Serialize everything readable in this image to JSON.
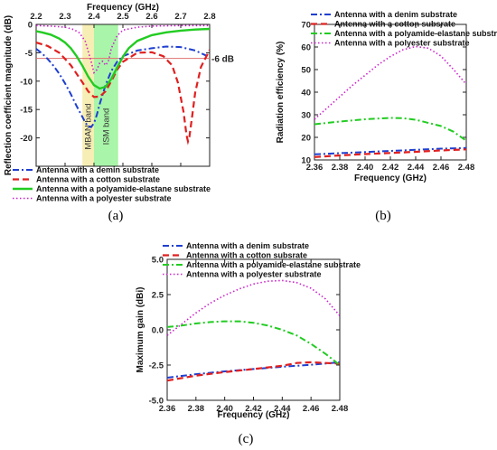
{
  "chart_data": [
    {
      "id": "a",
      "type": "line",
      "panel_label": "(a)",
      "xlabel": "Frequency (GHz)",
      "ylabel": "Reflection coefficient magnitude (dB)",
      "xlim": [
        2.2,
        2.8
      ],
      "ylim": [
        -25,
        0
      ],
      "xticks": [
        2.2,
        2.3,
        2.4,
        2.5,
        2.6,
        2.7,
        2.8
      ],
      "yticks": [
        0,
        -5,
        -10,
        -15,
        -20
      ],
      "x_axis_position": "top",
      "legend_position": "bottom",
      "threshold": {
        "y": -6,
        "label": "-6 dB",
        "color": "#e07070"
      },
      "bands": [
        {
          "name": "MBAN band",
          "x0": 2.36,
          "x1": 2.4,
          "color": "#f6eeb4"
        },
        {
          "name": "ISM band",
          "x0": 2.4,
          "x1": 2.4835,
          "color": "#a9f5a9"
        }
      ],
      "series": [
        {
          "name": "Antenna with a demin substrate",
          "color": "#1f3fd0",
          "dash": "dashdot",
          "points": [
            [
              2.2,
              -4.3
            ],
            [
              2.22,
              -5.1
            ],
            [
              2.24,
              -6.1
            ],
            [
              2.26,
              -7.3
            ],
            [
              2.28,
              -8.7
            ],
            [
              2.3,
              -10.4
            ],
            [
              2.32,
              -12.3
            ],
            [
              2.34,
              -14.4
            ],
            [
              2.36,
              -16.3
            ],
            [
              2.37,
              -17.3
            ],
            [
              2.38,
              -18
            ],
            [
              2.39,
              -18.1
            ],
            [
              2.4,
              -17.4
            ],
            [
              2.41,
              -15.9
            ],
            [
              2.42,
              -14
            ],
            [
              2.44,
              -10.7
            ],
            [
              2.46,
              -8.2
            ],
            [
              2.48,
              -6.6
            ],
            [
              2.5,
              -5.6
            ],
            [
              2.55,
              -4.6
            ],
            [
              2.6,
              -4.2
            ],
            [
              2.65,
              -3.9
            ],
            [
              2.7,
              -4
            ],
            [
              2.75,
              -4.6
            ],
            [
              2.78,
              -5.3
            ],
            [
              2.8,
              -5.8
            ]
          ]
        },
        {
          "name": "Antenna with a cotton substrate",
          "color": "#e02020",
          "dash": "dash",
          "points": [
            [
              2.2,
              -3.2
            ],
            [
              2.24,
              -3.8
            ],
            [
              2.28,
              -5
            ],
            [
              2.32,
              -7.2
            ],
            [
              2.36,
              -10.2
            ],
            [
              2.38,
              -11.8
            ],
            [
              2.4,
              -12.8
            ],
            [
              2.42,
              -12.7
            ],
            [
              2.44,
              -11.8
            ],
            [
              2.46,
              -10
            ],
            [
              2.48,
              -8
            ],
            [
              2.5,
              -6.6
            ],
            [
              2.55,
              -5
            ],
            [
              2.6,
              -4.9
            ],
            [
              2.64,
              -5.6
            ],
            [
              2.67,
              -7.2
            ],
            [
              2.69,
              -10.2
            ],
            [
              2.71,
              -15.5
            ],
            [
              2.72,
              -19.5
            ],
            [
              2.725,
              -20.6
            ],
            [
              2.73,
              -19.8
            ],
            [
              2.74,
              -16
            ],
            [
              2.75,
              -12
            ],
            [
              2.77,
              -7.5
            ],
            [
              2.8,
              -4.5
            ]
          ]
        },
        {
          "name": "Antenna with a polyamide-elastane substrate",
          "color": "#22cc22",
          "dash": "solid",
          "points": [
            [
              2.2,
              -1.2
            ],
            [
              2.22,
              -1.4
            ],
            [
              2.25,
              -1.8
            ],
            [
              2.28,
              -2.5
            ],
            [
              2.3,
              -3.2
            ],
            [
              2.32,
              -4.2
            ],
            [
              2.34,
              -5.6
            ],
            [
              2.36,
              -7.3
            ],
            [
              2.38,
              -9.2
            ],
            [
              2.4,
              -10.7
            ],
            [
              2.42,
              -11.3
            ],
            [
              2.44,
              -11
            ],
            [
              2.46,
              -9.6
            ],
            [
              2.48,
              -7.6
            ],
            [
              2.5,
              -5.7
            ],
            [
              2.52,
              -4.2
            ],
            [
              2.55,
              -2.9
            ],
            [
              2.6,
              -1.9
            ],
            [
              2.65,
              -1.4
            ],
            [
              2.7,
              -1.1
            ],
            [
              2.75,
              -0.9
            ],
            [
              2.8,
              -0.8
            ]
          ]
        },
        {
          "name": "Antenna with a polyester substrate",
          "color": "#cc22cc",
          "dash": "dot",
          "points": [
            [
              2.2,
              -0.2
            ],
            [
              2.25,
              -0.3
            ],
            [
              2.3,
              -0.5
            ],
            [
              2.33,
              -0.9
            ],
            [
              2.35,
              -1.5
            ],
            [
              2.37,
              -3
            ],
            [
              2.39,
              -6.5
            ],
            [
              2.4,
              -8.5
            ],
            [
              2.41,
              -8
            ],
            [
              2.42,
              -6.8
            ],
            [
              2.43,
              -6.5
            ],
            [
              2.44,
              -7.2
            ],
            [
              2.45,
              -6.5
            ],
            [
              2.46,
              -4.2
            ],
            [
              2.48,
              -2
            ],
            [
              2.5,
              -1
            ],
            [
              2.55,
              -0.5
            ],
            [
              2.6,
              -0.3
            ],
            [
              2.7,
              -0.2
            ],
            [
              2.8,
              -0.2
            ]
          ]
        }
      ]
    },
    {
      "id": "b",
      "type": "line",
      "panel_label": "(b)",
      "xlabel": "Frequency (GHz)",
      "ylabel": "Radiation efficiency (%)",
      "xlim": [
        2.36,
        2.48
      ],
      "ylim": [
        10,
        70
      ],
      "xticks": [
        2.36,
        2.38,
        2.4,
        2.42,
        2.44,
        2.46,
        2.48
      ],
      "yticks": [
        10,
        20,
        30,
        40,
        50,
        60,
        70
      ],
      "legend_position": "top",
      "series": [
        {
          "name": "Antenna with a denim substrate",
          "color": "#1f3fd0",
          "dash": "dashdot",
          "points": [
            [
              2.36,
              12.5
            ],
            [
              2.38,
              13
            ],
            [
              2.4,
              13.5
            ],
            [
              2.42,
              14
            ],
            [
              2.44,
              14.5
            ],
            [
              2.46,
              15
            ],
            [
              2.48,
              15.3
            ]
          ]
        },
        {
          "name": "Antenna with a cotton subsrate",
          "color": "#e02020",
          "dash": "dash",
          "points": [
            [
              2.36,
              11.3
            ],
            [
              2.38,
              12
            ],
            [
              2.4,
              12.6
            ],
            [
              2.42,
              13.1
            ],
            [
              2.44,
              13.6
            ],
            [
              2.46,
              14.2
            ],
            [
              2.48,
              14.7
            ]
          ]
        },
        {
          "name": "Antenna with a polyamide-elastane substrate",
          "color": "#22cc22",
          "dash": "dashdot",
          "points": [
            [
              2.36,
              25.8
            ],
            [
              2.38,
              27
            ],
            [
              2.4,
              28
            ],
            [
              2.42,
              28.6
            ],
            [
              2.43,
              28.5
            ],
            [
              2.44,
              27.8
            ],
            [
              2.46,
              25
            ],
            [
              2.47,
              22.5
            ],
            [
              2.48,
              18.5
            ]
          ]
        },
        {
          "name": "Antenna with a polyester substrate",
          "color": "#cc22cc",
          "dash": "dot",
          "points": [
            [
              2.36,
              28
            ],
            [
              2.37,
              33
            ],
            [
              2.38,
              38
            ],
            [
              2.39,
              43
            ],
            [
              2.4,
              47.5
            ],
            [
              2.41,
              52
            ],
            [
              2.42,
              55.8
            ],
            [
              2.43,
              58.8
            ],
            [
              2.44,
              60.2
            ],
            [
              2.45,
              59.5
            ],
            [
              2.46,
              56
            ],
            [
              2.47,
              50
            ],
            [
              2.48,
              43.5
            ]
          ]
        }
      ]
    },
    {
      "id": "c",
      "type": "line",
      "panel_label": "(c)",
      "xlabel": "Frequency (GHz)",
      "ylabel": "Maximum gain (dBi)",
      "xlim": [
        2.36,
        2.48
      ],
      "ylim": [
        -5,
        5
      ],
      "xticks": [
        2.36,
        2.38,
        2.4,
        2.42,
        2.44,
        2.46,
        2.48
      ],
      "yticks": [
        5.0,
        2.5,
        0.0,
        -2.5,
        -5.0
      ],
      "yticklabels": [
        "5.0",
        "2.5",
        "0.0",
        "-2.5",
        "-5.0"
      ],
      "legend_position": "top",
      "series": [
        {
          "name": "Antenna with a denim substrate",
          "color": "#1f3fd0",
          "dash": "dashdot",
          "points": [
            [
              2.36,
              -3.4
            ],
            [
              2.38,
              -3.15
            ],
            [
              2.4,
              -2.95
            ],
            [
              2.42,
              -2.78
            ],
            [
              2.44,
              -2.62
            ],
            [
              2.46,
              -2.48
            ],
            [
              2.48,
              -2.3
            ]
          ]
        },
        {
          "name": "Antenna with a cotton subsrate",
          "color": "#e02020",
          "dash": "dash",
          "points": [
            [
              2.36,
              -3.6
            ],
            [
              2.38,
              -3.25
            ],
            [
              2.4,
              -3
            ],
            [
              2.42,
              -2.78
            ],
            [
              2.44,
              -2.55
            ],
            [
              2.45,
              -2.35
            ],
            [
              2.46,
              -2.3
            ],
            [
              2.47,
              -2.35
            ],
            [
              2.48,
              -2.4
            ]
          ]
        },
        {
          "name": "Antenna with a polyamide-elastane substrate",
          "color": "#22cc22",
          "dash": "dashdot",
          "points": [
            [
              2.36,
              0.2
            ],
            [
              2.37,
              0.3
            ],
            [
              2.38,
              0.45
            ],
            [
              2.39,
              0.55
            ],
            [
              2.4,
              0.6
            ],
            [
              2.41,
              0.6
            ],
            [
              2.42,
              0.5
            ],
            [
              2.43,
              0.3
            ],
            [
              2.44,
              0
            ],
            [
              2.45,
              -0.4
            ],
            [
              2.46,
              -1
            ],
            [
              2.47,
              -1.7
            ],
            [
              2.48,
              -2.5
            ]
          ]
        },
        {
          "name": "Antenna with a polyester substrate",
          "color": "#cc22cc",
          "dash": "dot",
          "points": [
            [
              2.36,
              -0.4
            ],
            [
              2.37,
              0.4
            ],
            [
              2.38,
              1.2
            ],
            [
              2.39,
              1.9
            ],
            [
              2.4,
              2.45
            ],
            [
              2.41,
              2.9
            ],
            [
              2.42,
              3.25
            ],
            [
              2.43,
              3.45
            ],
            [
              2.44,
              3.5
            ],
            [
              2.45,
              3.35
            ],
            [
              2.46,
              2.95
            ],
            [
              2.47,
              2.2
            ],
            [
              2.48,
              1.0
            ]
          ]
        }
      ]
    }
  ]
}
